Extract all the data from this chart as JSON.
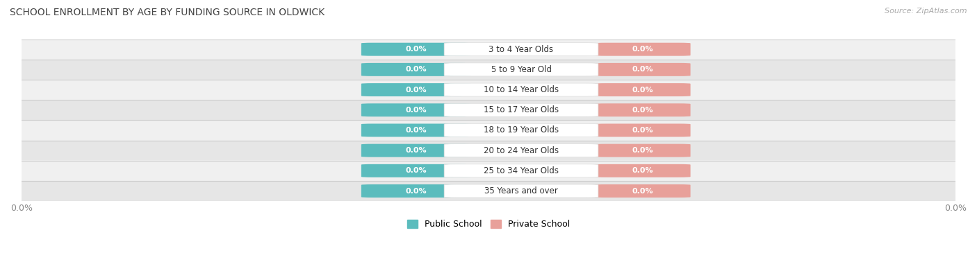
{
  "title": "SCHOOL ENROLLMENT BY AGE BY FUNDING SOURCE IN OLDWICK",
  "source": "Source: ZipAtlas.com",
  "categories": [
    "3 to 4 Year Olds",
    "5 to 9 Year Old",
    "10 to 14 Year Olds",
    "15 to 17 Year Olds",
    "18 to 19 Year Olds",
    "20 to 24 Year Olds",
    "25 to 34 Year Olds",
    "35 Years and over"
  ],
  "public_values": [
    0.0,
    0.0,
    0.0,
    0.0,
    0.0,
    0.0,
    0.0,
    0.0
  ],
  "private_values": [
    0.0,
    0.0,
    0.0,
    0.0,
    0.0,
    0.0,
    0.0,
    0.0
  ],
  "public_color": "#5bbcbd",
  "private_color": "#e8a09a",
  "row_bg_colors": [
    "#f0f0f0",
    "#e6e6e6"
  ],
  "title_fontsize": 10,
  "legend_public": "Public School",
  "legend_private": "Private School",
  "x_tick_label_left": "0.0%",
  "x_tick_label_right": "0.0%"
}
